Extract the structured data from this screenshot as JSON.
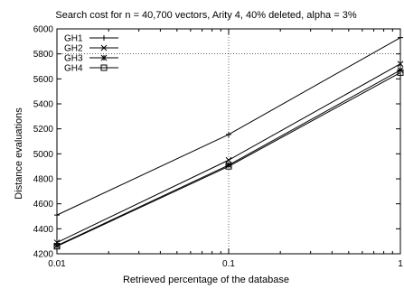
{
  "chart_data": {
    "type": "line",
    "title": "Search cost for n = 40,700 vectors, Arity 4, 40% deleted, alpha = 3%",
    "xlabel": "Retrieved percentage of the database",
    "ylabel": "Distance evaluations",
    "x_scale": "log",
    "xlim": [
      0.01,
      1
    ],
    "ylim": [
      4200,
      6000
    ],
    "x_ticks": [
      0.01,
      0.1,
      1
    ],
    "x_tick_labels": [
      "0.01",
      "0.1",
      "1"
    ],
    "y_ticks": [
      4200,
      4400,
      4600,
      4800,
      5000,
      5200,
      5400,
      5600,
      5800,
      6000
    ],
    "grid": "major x at 0.1 and y at 5800 (dotted)",
    "legend_position": "top-left",
    "x": [
      0.01,
      0.1,
      1
    ],
    "series": [
      {
        "name": "GH1",
        "marker": "plus",
        "values": [
          4510,
          5155,
          5930
        ]
      },
      {
        "name": "GH2",
        "marker": "cross",
        "values": [
          4290,
          4950,
          5720
        ]
      },
      {
        "name": "GH3",
        "marker": "star",
        "values": [
          4265,
          4910,
          5670
        ]
      },
      {
        "name": "GH4",
        "marker": "square",
        "values": [
          4260,
          4900,
          5650
        ]
      }
    ]
  }
}
